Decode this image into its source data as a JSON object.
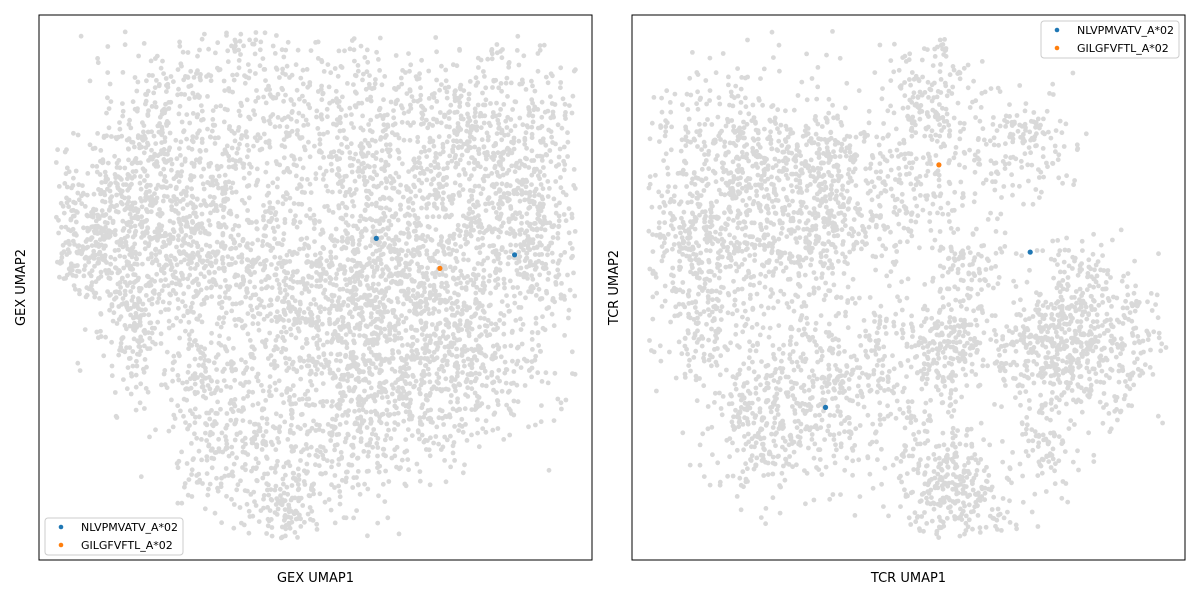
{
  "chart_data": [
    {
      "type": "scatter",
      "xlabel": "GEX UMAP1",
      "ylabel": "GEX UMAP2",
      "xlim": [
        0,
        1
      ],
      "ylim": [
        0,
        1
      ],
      "ticks": false,
      "grid": false,
      "legend_position": "lower-left",
      "background_color": "#d9d9d9",
      "series": [
        {
          "name": "NLVPMVATV_A*02",
          "color": "#1f77b4",
          "points": [
            [
              0.61,
              0.59
            ],
            [
              0.86,
              0.56
            ]
          ]
        },
        {
          "name": "GILGFVFTL_A*02",
          "color": "#ff7f0e",
          "points": [
            [
              0.725,
              0.535
            ]
          ]
        }
      ]
    },
    {
      "type": "scatter",
      "xlabel": "TCR UMAP1",
      "ylabel": "TCR UMAP2",
      "xlim": [
        0,
        1
      ],
      "ylim": [
        0,
        1
      ],
      "ticks": false,
      "grid": false,
      "legend_position": "top-right",
      "background_color": "#d9d9d9",
      "series": [
        {
          "name": "NLVPMVATV_A*02",
          "color": "#1f77b4",
          "points": [
            [
              0.72,
              0.565
            ],
            [
              0.35,
              0.28
            ]
          ]
        },
        {
          "name": "GILGFVFTL_A*02",
          "color": "#ff7f0e",
          "points": [
            [
              0.555,
              0.725
            ]
          ]
        }
      ]
    }
  ]
}
